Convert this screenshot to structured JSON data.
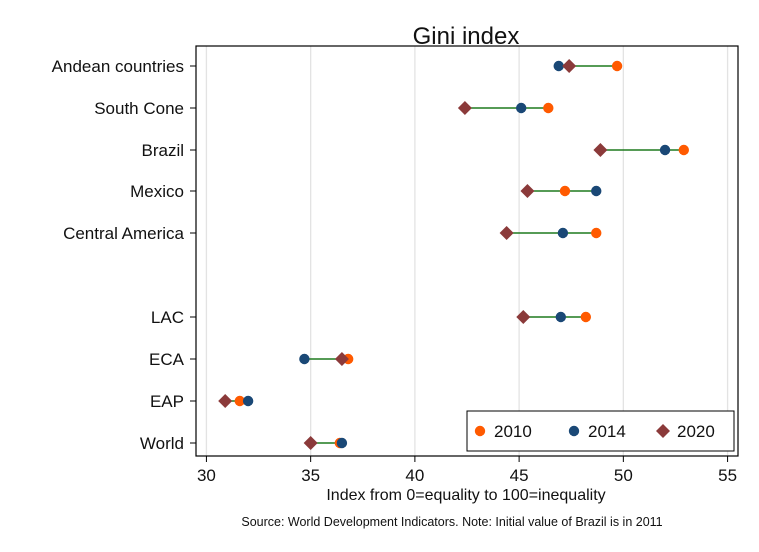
{
  "chart_data": {
    "type": "dot",
    "title": "Gini index",
    "xlabel": "Index from 0=equality to 100=inequality",
    "note": "Source: World Development Indicators. Note: Initial value of Brazil is in 2011",
    "xlim": [
      29.5,
      55.5
    ],
    "xticks": [
      30,
      35,
      40,
      45,
      50,
      55
    ],
    "grid": true,
    "legend_position": "bottom-right",
    "categories": [
      "Andean countries",
      "South Cone",
      "Brazil",
      "Mexico",
      "Central America",
      "LAC",
      "ECA",
      "EAP",
      "World"
    ],
    "series": [
      {
        "name": "2010",
        "marker": "circle",
        "color": "#ff5a00",
        "values": [
          49.7,
          46.4,
          52.9,
          47.2,
          48.7,
          48.2,
          36.8,
          31.6,
          36.4
        ]
      },
      {
        "name": "2014",
        "marker": "circle",
        "color": "#1a4876",
        "values": [
          46.9,
          45.1,
          52.0,
          48.7,
          47.1,
          47.0,
          34.7,
          32.0,
          36.5
        ]
      },
      {
        "name": "2020",
        "marker": "diamond",
        "color": "#8b3a3a",
        "values": [
          47.4,
          42.4,
          48.9,
          45.4,
          44.4,
          45.2,
          36.5,
          30.9,
          35.0
        ]
      }
    ],
    "connector_color": "#1e7a1e"
  }
}
